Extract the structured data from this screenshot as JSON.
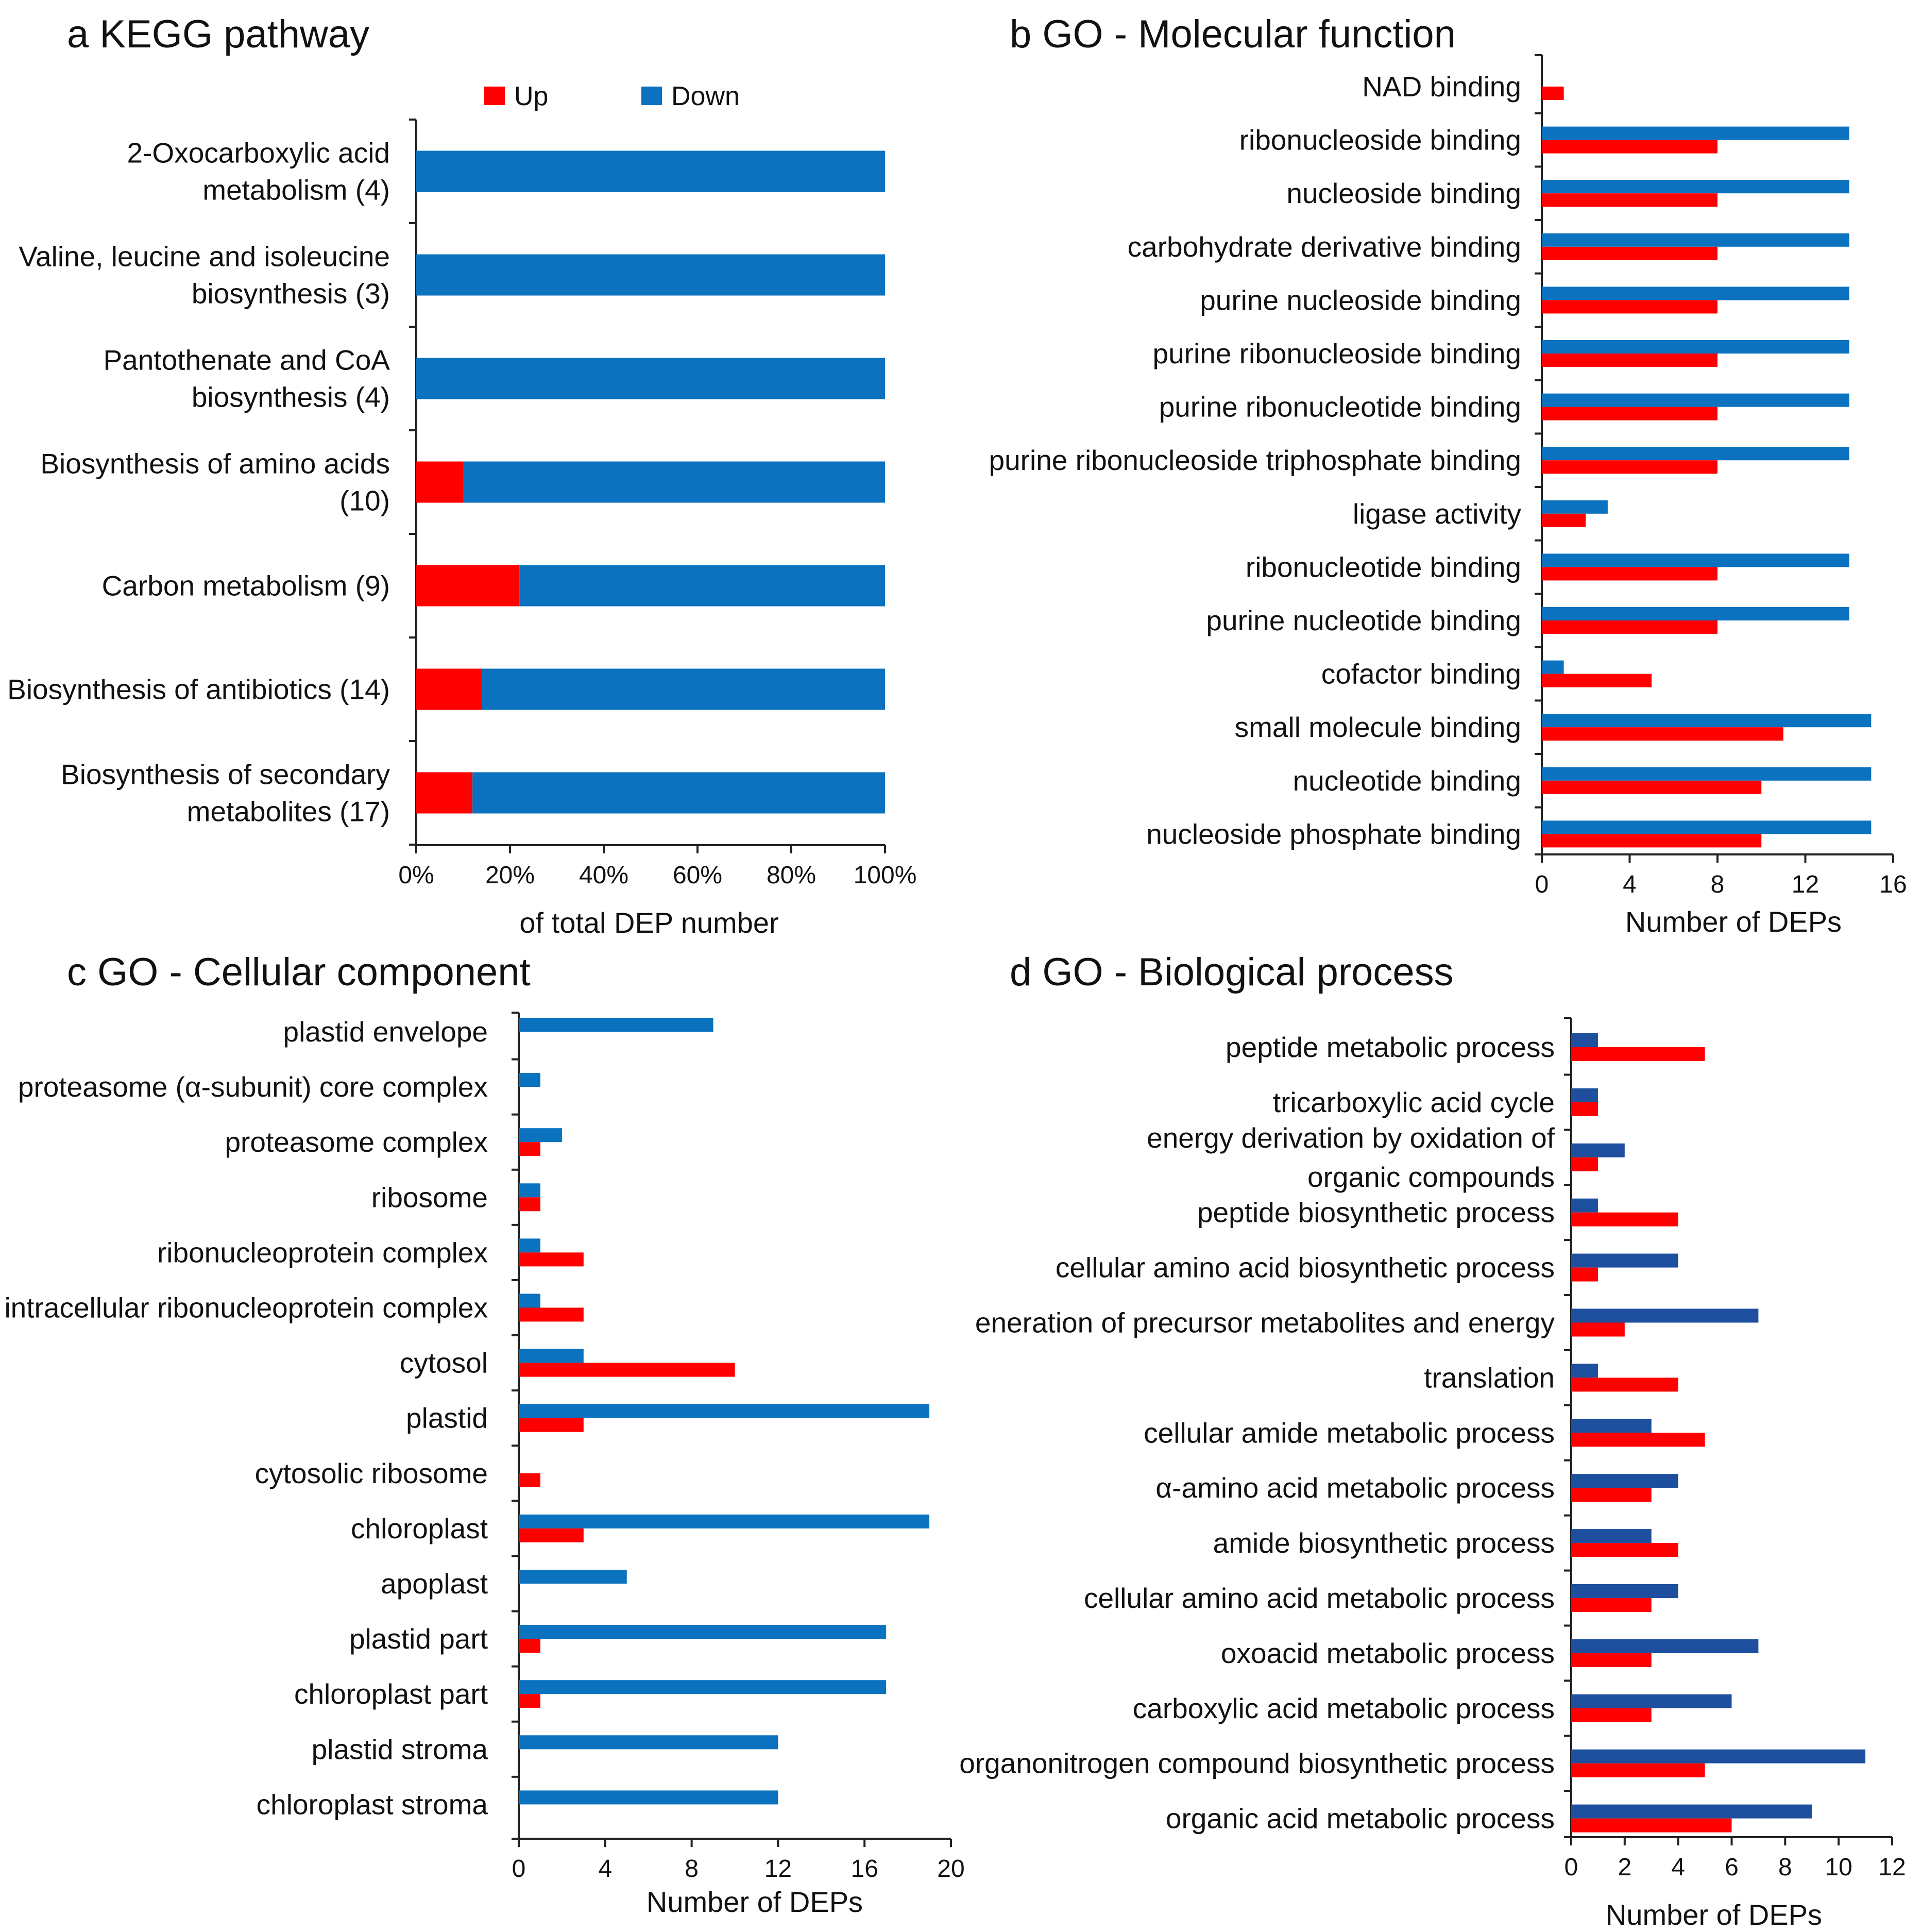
{
  "colors": {
    "up": "#ff0000",
    "down": "#0a72be",
    "down_dark": "#1d4f9e"
  },
  "chart_data": [
    {
      "type": "bar",
      "orientation": "horizontal",
      "stacked": true,
      "title": "a KEGG pathway",
      "xlabel": "of total DEP number",
      "xlim": [
        0,
        100
      ],
      "xticks": [
        "0%",
        "20%",
        "40%",
        "60%",
        "80%",
        "100%"
      ],
      "legend": {
        "placement": "top",
        "entries": [
          "Up",
          "Down"
        ]
      },
      "categories": [
        [
          "2-Oxocarboxylic acid",
          "metabolism (4)"
        ],
        [
          "Valine, leucine and isoleucine",
          "biosynthesis (3)"
        ],
        [
          "Pantothenate and CoA",
          "biosynthesis (4)"
        ],
        [
          "Biosynthesis of amino acids",
          "(10)"
        ],
        [
          "Carbon metabolism (9)"
        ],
        [
          "Biosynthesis of antibiotics (14)"
        ],
        [
          "Biosynthesis of secondary",
          "metabolites (17)"
        ]
      ],
      "series": [
        {
          "name": "Up",
          "values": [
            0,
            0,
            0,
            10,
            22,
            14,
            12
          ]
        },
        {
          "name": "Down",
          "values": [
            100,
            100,
            100,
            90,
            78,
            86,
            88
          ]
        }
      ]
    },
    {
      "type": "bar",
      "orientation": "horizontal",
      "title": "b GO - Molecular function",
      "xlabel": "Number of DEPs",
      "xlim": [
        0,
        16
      ],
      "xticks": [
        "0",
        "4",
        "8",
        "12",
        "16"
      ],
      "categories": [
        [
          "NAD binding"
        ],
        [
          "ribonucleoside binding"
        ],
        [
          "nucleoside binding"
        ],
        [
          "carbohydrate derivative binding"
        ],
        [
          "purine nucleoside binding"
        ],
        [
          "purine ribonucleoside binding"
        ],
        [
          "purine ribonucleotide binding"
        ],
        [
          "purine ribonucleoside triphosphate binding"
        ],
        [
          "ligase activity"
        ],
        [
          "ribonucleotide binding"
        ],
        [
          "purine nucleotide binding"
        ],
        [
          "cofactor binding"
        ],
        [
          "small molecule binding"
        ],
        [
          "nucleotide binding"
        ],
        [
          "nucleoside phosphate binding"
        ]
      ],
      "series": [
        {
          "name": "Down",
          "values": [
            0,
            14,
            14,
            14,
            14,
            14,
            14,
            14,
            3,
            14,
            14,
            1,
            15,
            15,
            15
          ]
        },
        {
          "name": "Up",
          "values": [
            1,
            8,
            8,
            8,
            8,
            8,
            8,
            8,
            2,
            8,
            8,
            5,
            11,
            10,
            10
          ]
        }
      ]
    },
    {
      "type": "bar",
      "orientation": "horizontal",
      "title": "c GO - Cellular component",
      "xlabel": "Number of DEPs",
      "xlim": [
        0,
        20
      ],
      "xticks": [
        "0",
        "4",
        "8",
        "12",
        "16",
        "20"
      ],
      "categories": [
        [
          "plastid envelope"
        ],
        [
          "proteasome (α-subunit) core complex"
        ],
        [
          "proteasome complex"
        ],
        [
          "ribosome"
        ],
        [
          "ribonucleoprotein complex"
        ],
        [
          "intracellular ribonucleoprotein complex"
        ],
        [
          "cytosol"
        ],
        [
          "plastid"
        ],
        [
          "cytosolic ribosome"
        ],
        [
          "chloroplast"
        ],
        [
          "apoplast"
        ],
        [
          "plastid part"
        ],
        [
          "chloroplast part"
        ],
        [
          "plastid stroma"
        ],
        [
          "chloroplast stroma"
        ]
      ],
      "series": [
        {
          "name": "Down",
          "values": [
            9,
            1,
            2,
            1,
            1,
            1,
            3,
            19,
            0,
            19,
            5,
            17,
            17,
            12,
            12
          ]
        },
        {
          "name": "Up",
          "values": [
            0,
            0,
            1,
            1,
            3,
            3,
            10,
            3,
            1,
            3,
            0,
            1,
            1,
            0,
            0
          ]
        }
      ]
    },
    {
      "type": "bar",
      "orientation": "horizontal",
      "title": "d GO - Biological process",
      "xlabel": "Number of DEPs",
      "xlim": [
        0,
        12
      ],
      "xticks": [
        "0",
        "2",
        "4",
        "6",
        "8",
        "10",
        "12"
      ],
      "categories": [
        [
          "peptide metabolic process"
        ],
        [
          "tricarboxylic acid cycle"
        ],
        [
          "energy derivation by oxidation of",
          "organic compounds"
        ],
        [
          "peptide biosynthetic process"
        ],
        [
          "cellular amino acid biosynthetic process"
        ],
        [
          "eneration of precursor metabolites and energy"
        ],
        [
          "translation"
        ],
        [
          "cellular amide metabolic process"
        ],
        [
          "α-amino acid metabolic process"
        ],
        [
          "amide biosynthetic process"
        ],
        [
          "cellular amino acid metabolic process"
        ],
        [
          "oxoacid metabolic process"
        ],
        [
          "carboxylic acid metabolic process"
        ],
        [
          "organonitrogen compound biosynthetic process"
        ],
        [
          "organic acid metabolic process"
        ]
      ],
      "series": [
        {
          "name": "Down",
          "values": [
            1,
            1,
            2,
            1,
            4,
            7,
            1,
            3,
            4,
            3,
            4,
            7,
            6,
            11,
            9
          ]
        },
        {
          "name": "Up",
          "values": [
            5,
            1,
            1,
            4,
            1,
            2,
            4,
            5,
            3,
            4,
            3,
            3,
            3,
            5,
            6
          ]
        }
      ]
    }
  ]
}
